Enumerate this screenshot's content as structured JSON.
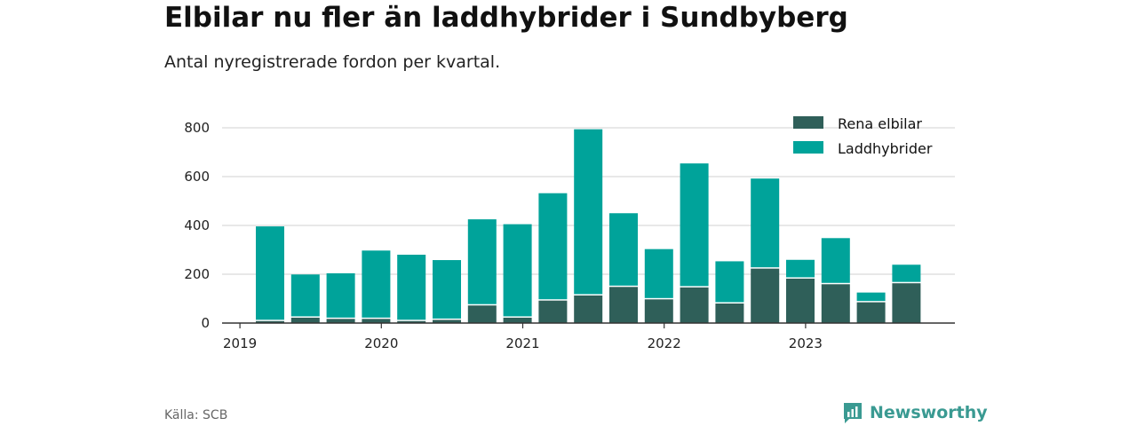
{
  "header": {
    "title": "Elbilar nu fler än laddhybrider i Sundbyberg",
    "subtitle": "Antal nyregistrerade fordon per kvartal."
  },
  "footer": {
    "source": "Källa: SCB",
    "brand": "Newsworthy"
  },
  "colors": {
    "elbilar": "#2f5f59",
    "laddhybrider": "#00a39a",
    "grid": "#d9d9d9",
    "axis": "#333333",
    "brand": "#3a9a92"
  },
  "chart_data": {
    "type": "bar",
    "stacked": true,
    "title": "Elbilar nu fler än laddhybrider i Sundbyberg",
    "subtitle": "Antal nyregistrerade fordon per kvartal.",
    "xlabel": "",
    "ylabel": "",
    "ylim": [
      0,
      800
    ],
    "yticks": [
      0,
      200,
      400,
      600,
      800
    ],
    "grid": true,
    "legend_position": "top-right",
    "x_tick_labels": [
      "2019",
      "2020",
      "2021",
      "2022",
      "2023"
    ],
    "categories": [
      "2019 Q1",
      "2019 Q2",
      "2019 Q3",
      "2019 Q4",
      "2020 Q1",
      "2020 Q2",
      "2020 Q3",
      "2020 Q4",
      "2021 Q1",
      "2021 Q2",
      "2021 Q3",
      "2021 Q4",
      "2022 Q1",
      "2022 Q2",
      "2022 Q3",
      "2022 Q4",
      "2023 Q1",
      "2023 Q2",
      "2023 Q3"
    ],
    "series": [
      {
        "name": "Rena elbilar",
        "values": [
          8,
          22,
          17,
          17,
          8,
          13,
          72,
          22,
          92,
          113,
          148,
          97,
          146,
          80,
          223,
          182,
          159,
          85,
          163
        ]
      },
      {
        "name": "Laddhybrider",
        "values": [
          388,
          177,
          187,
          280,
          272,
          245,
          353,
          383,
          440,
          681,
          302,
          206,
          508,
          173,
          369,
          77,
          189,
          40,
          76
        ]
      }
    ]
  }
}
